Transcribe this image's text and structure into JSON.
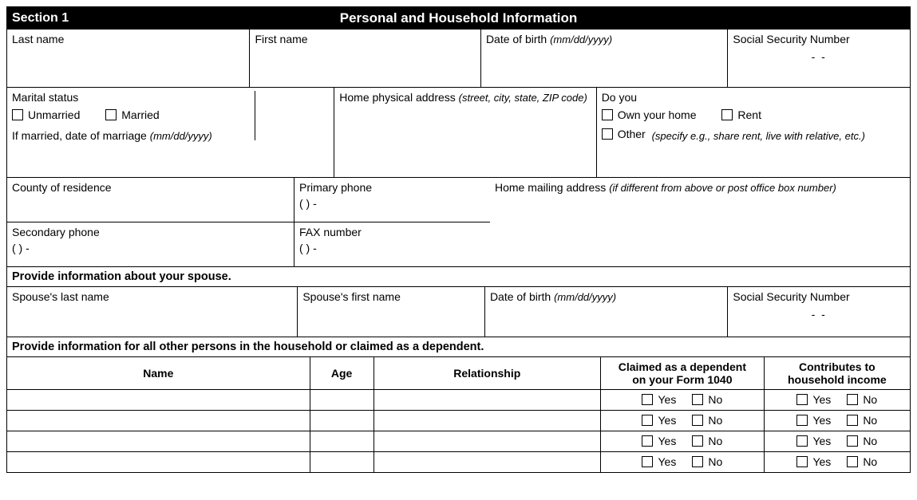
{
  "header": {
    "section": "Section 1",
    "title": "Personal and Household Information"
  },
  "row1": {
    "last_name": "Last name",
    "first_name": "First name",
    "dob_label": "Date of birth",
    "dob_hint": "(mm/dd/yyyy)",
    "ssn_label": "Social Security Number",
    "ssn_tpl": "-              -"
  },
  "row2": {
    "marital_label": "Marital status",
    "unmarried": "Unmarried",
    "married": "Married",
    "if_married": "If married, date of marriage",
    "if_married_hint": "(mm/dd/yyyy)",
    "home_addr_label": "Home physical address",
    "home_addr_hint": "(street, city, state, ZIP code)",
    "do_you": "Do you",
    "own": "Own your home",
    "rent": "Rent",
    "other": "Other",
    "other_hint": "(specify e.g., share rent, live with relative, etc.)"
  },
  "row3": {
    "county": "County of residence",
    "primary_phone": "Primary phone",
    "phone_tpl": "(           )             -",
    "mailing_label": "Home mailing address",
    "mailing_hint": "(if different from above or post office box number)",
    "secondary_phone": "Secondary phone",
    "fax": "FAX number"
  },
  "spouse_instr": "Provide information about your spouse.",
  "spouse": {
    "last": "Spouse's last name",
    "first": "Spouse's first name",
    "dob_label": "Date of birth",
    "dob_hint": "(mm/dd/yyyy)",
    "ssn_label": "Social Security Number",
    "ssn_tpl": "-              -"
  },
  "dep_instr": "Provide information for all other persons in the household or claimed as a dependent.",
  "dep_table": {
    "cols": {
      "name": "Name",
      "age": "Age",
      "rel": "Relationship",
      "claimed_l1": "Claimed as a dependent",
      "claimed_l2": "on your Form 1040",
      "contrib_l1": "Contributes to",
      "contrib_l2": "household income"
    },
    "yes": "Yes",
    "no": "No",
    "row_count": 4
  },
  "style": {
    "widths": {
      "row1": [
        305,
        290,
        310,
        228
      ],
      "row2": [
        410,
        330,
        393
      ],
      "row3a": [
        360,
        245,
        528
      ],
      "row3b": [
        360,
        245
      ],
      "spouse": [
        365,
        235,
        305,
        228
      ],
      "dep": [
        380,
        80,
        285,
        205,
        183
      ]
    }
  }
}
